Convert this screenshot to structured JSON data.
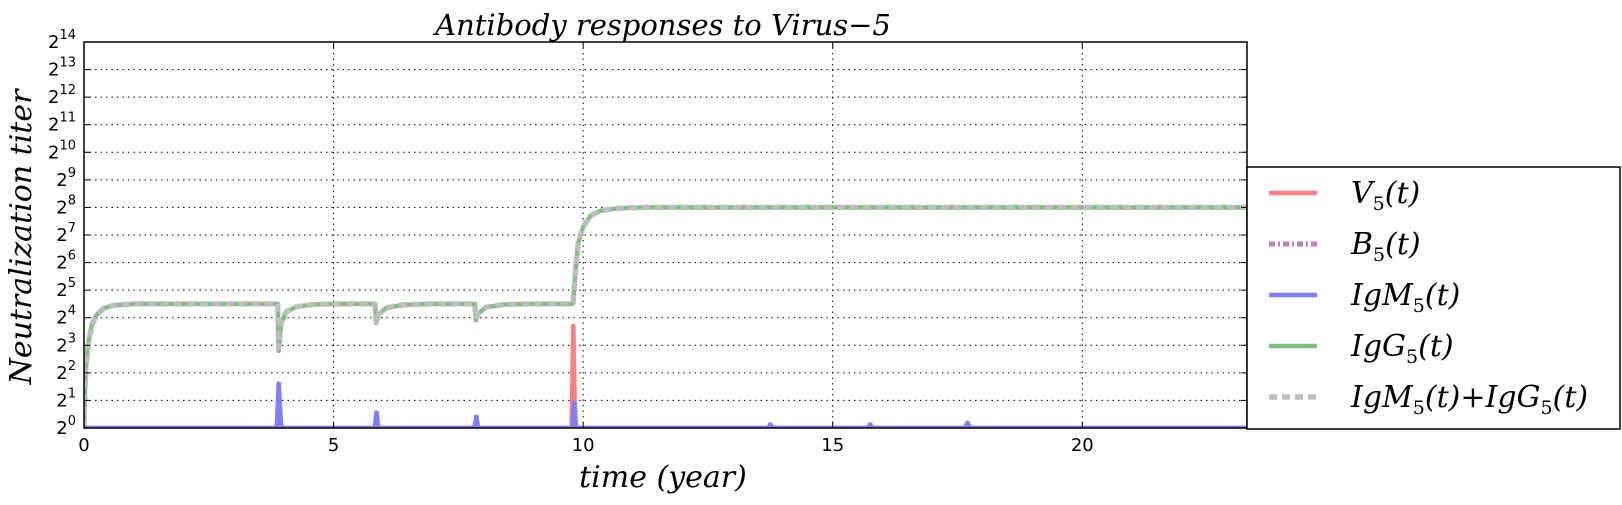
{
  "chart_data": {
    "type": "line",
    "title": "Antibody responses to Virus−5",
    "xlabel": "time (year)",
    "ylabel": "Neutralization  titer",
    "xlim": [
      0,
      23.3
    ],
    "ylim_log2": [
      0,
      14
    ],
    "yscale": "log2",
    "grid": true,
    "grid_style": "dotted",
    "x_ticks": [
      0,
      5,
      10,
      15,
      20
    ],
    "y_tick_base": "2",
    "y_tick_exponents": [
      0,
      1,
      2,
      3,
      4,
      5,
      6,
      7,
      8,
      9,
      10,
      11,
      12,
      13,
      14
    ],
    "legend_position": "lower right, outside plot",
    "infections_year": [
      0.0,
      3.9,
      5.85,
      7.85,
      9.8
    ],
    "series": [
      {
        "name": "V5(t)",
        "legend_base": "V",
        "legend_sub": "5",
        "legend_tail": "(t)",
        "color": "#ff7f7f",
        "style": "solid",
        "points_log2": [
          [
            0,
            0
          ],
          [
            9.77,
            0
          ],
          [
            9.8,
            3.7
          ],
          [
            9.84,
            0
          ],
          [
            23.3,
            0
          ]
        ]
      },
      {
        "name": "B5(t)",
        "legend_base": "B",
        "legend_sub": "5",
        "legend_tail": "(t)",
        "color": "#bf7fbf",
        "style": "dashdot",
        "points_log2": [
          [
            0,
            0
          ],
          [
            23.3,
            0
          ]
        ]
      },
      {
        "name": "IgM5(t)",
        "legend_base": "IgM",
        "legend_sub": "5",
        "legend_tail": "(t)",
        "color": "#7f7fff",
        "style": "solid",
        "points_log2": [
          [
            0,
            0
          ],
          [
            3.86,
            0
          ],
          [
            3.9,
            1.6
          ],
          [
            3.95,
            0
          ],
          [
            5.82,
            0
          ],
          [
            5.86,
            0.55
          ],
          [
            5.9,
            0
          ],
          [
            7.82,
            0
          ],
          [
            7.86,
            0.4
          ],
          [
            7.9,
            0
          ],
          [
            9.78,
            0
          ],
          [
            9.82,
            0.9
          ],
          [
            9.86,
            0
          ],
          [
            13.7,
            0
          ],
          [
            13.75,
            0.12
          ],
          [
            13.8,
            0
          ],
          [
            15.7,
            0
          ],
          [
            15.75,
            0.12
          ],
          [
            15.8,
            0
          ],
          [
            17.65,
            0
          ],
          [
            17.7,
            0.18
          ],
          [
            17.75,
            0
          ],
          [
            23.3,
            0
          ]
        ]
      },
      {
        "name": "IgG5(t)",
        "legend_base": "IgG",
        "legend_sub": "5",
        "legend_tail": "(t)",
        "color": "#7fbf7f",
        "style": "solid",
        "points_log2": [
          [
            0,
            0
          ],
          [
            0.03,
            2.0
          ],
          [
            0.08,
            3.0
          ],
          [
            0.15,
            3.7
          ],
          [
            0.25,
            4.1
          ],
          [
            0.4,
            4.35
          ],
          [
            0.6,
            4.45
          ],
          [
            1.0,
            4.5
          ],
          [
            3.88,
            4.5
          ],
          [
            3.9,
            2.8
          ],
          [
            3.95,
            3.8
          ],
          [
            4.05,
            4.2
          ],
          [
            4.25,
            4.4
          ],
          [
            4.6,
            4.48
          ],
          [
            5.0,
            4.5
          ],
          [
            5.83,
            4.5
          ],
          [
            5.85,
            3.8
          ],
          [
            5.9,
            4.1
          ],
          [
            6.05,
            4.35
          ],
          [
            6.4,
            4.47
          ],
          [
            7.0,
            4.5
          ],
          [
            7.83,
            4.5
          ],
          [
            7.85,
            3.9
          ],
          [
            7.9,
            4.15
          ],
          [
            8.05,
            4.38
          ],
          [
            8.4,
            4.48
          ],
          [
            9.0,
            4.5
          ],
          [
            9.78,
            4.5
          ],
          [
            9.8,
            4.55
          ],
          [
            9.85,
            5.8
          ],
          [
            9.9,
            6.7
          ],
          [
            10.0,
            7.3
          ],
          [
            10.15,
            7.7
          ],
          [
            10.35,
            7.88
          ],
          [
            10.7,
            7.97
          ],
          [
            11.2,
            8.0
          ],
          [
            23.3,
            8.0
          ]
        ]
      },
      {
        "name": "IgM5(t)+IgG5(t)",
        "legend_base": "IgM",
        "legend_sub": "5",
        "legend_tail": "(t)+",
        "legend_base2": "IgG",
        "legend_sub2": "5",
        "legend_tail2": "(t)",
        "color": "#bfbfbf",
        "style": "dashed",
        "points_log2": [
          [
            0,
            0
          ],
          [
            0.03,
            2.0
          ],
          [
            0.08,
            3.0
          ],
          [
            0.15,
            3.7
          ],
          [
            0.25,
            4.1
          ],
          [
            0.4,
            4.35
          ],
          [
            0.6,
            4.45
          ],
          [
            1.0,
            4.5
          ],
          [
            3.88,
            4.5
          ],
          [
            3.9,
            2.9
          ],
          [
            3.95,
            3.85
          ],
          [
            4.05,
            4.22
          ],
          [
            4.25,
            4.4
          ],
          [
            4.6,
            4.48
          ],
          [
            5.0,
            4.5
          ],
          [
            5.83,
            4.5
          ],
          [
            5.85,
            3.85
          ],
          [
            5.9,
            4.12
          ],
          [
            6.05,
            4.36
          ],
          [
            6.4,
            4.47
          ],
          [
            7.0,
            4.5
          ],
          [
            7.83,
            4.5
          ],
          [
            7.85,
            3.95
          ],
          [
            7.9,
            4.17
          ],
          [
            8.05,
            4.38
          ],
          [
            8.4,
            4.48
          ],
          [
            9.0,
            4.5
          ],
          [
            9.78,
            4.5
          ],
          [
            9.8,
            4.58
          ],
          [
            9.85,
            5.85
          ],
          [
            9.9,
            6.72
          ],
          [
            10.0,
            7.3
          ],
          [
            10.15,
            7.7
          ],
          [
            10.35,
            7.88
          ],
          [
            10.7,
            7.97
          ],
          [
            11.2,
            8.0
          ],
          [
            23.3,
            8.0
          ]
        ]
      }
    ]
  }
}
